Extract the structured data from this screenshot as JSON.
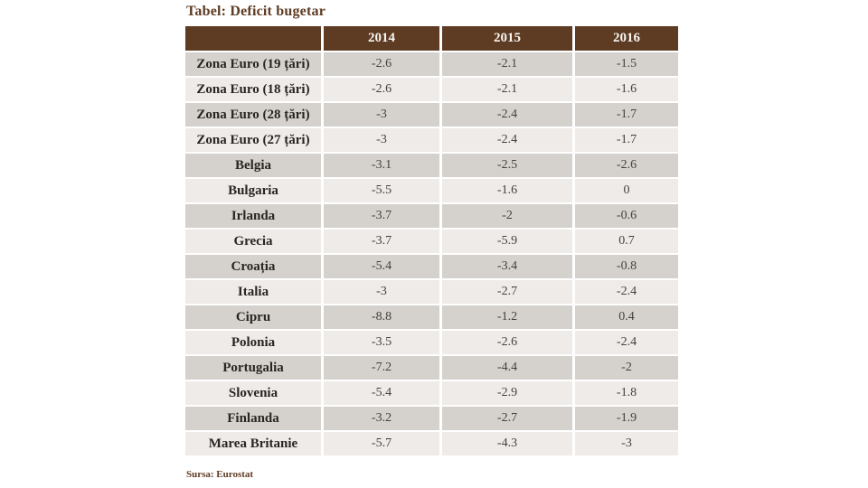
{
  "colors": {
    "page_background": "#FFFFFF",
    "header_bg": "#5E3B23",
    "header_text": "#F8F5F1",
    "row_dark_bg": "#D5D1CD",
    "row_light_bg": "#EEEBE9",
    "label_text": "#2A2522",
    "value_text": "#454140",
    "title_text": "#5E3B23"
  },
  "chart_data": {
    "type": "table",
    "title": "Tabel: Deficit bugetar",
    "source": "Sursa: Eurostat",
    "columns": [
      "",
      "2014",
      "2015",
      "2016"
    ],
    "rows": [
      {
        "label": "Zona Euro (19 țări)",
        "values": [
          "-2.6",
          "-2.1",
          "-1.5"
        ]
      },
      {
        "label": "Zona Euro (18 țări)",
        "values": [
          "-2.6",
          "-2.1",
          "-1.6"
        ]
      },
      {
        "label": "Zona Euro (28 țări)",
        "values": [
          "-3",
          "-2.4",
          "-1.7"
        ]
      },
      {
        "label": "Zona Euro (27 țări)",
        "values": [
          "-3",
          "-2.4",
          "-1.7"
        ]
      },
      {
        "label": "Belgia",
        "values": [
          "-3.1",
          "-2.5",
          "-2.6"
        ]
      },
      {
        "label": "Bulgaria",
        "values": [
          "-5.5",
          "-1.6",
          "0"
        ]
      },
      {
        "label": "Irlanda",
        "values": [
          "-3.7",
          "-2",
          "-0.6"
        ]
      },
      {
        "label": "Grecia",
        "values": [
          "-3.7",
          "-5.9",
          "0.7"
        ]
      },
      {
        "label": "Croația",
        "values": [
          "-5.4",
          "-3.4",
          "-0.8"
        ]
      },
      {
        "label": "Italia",
        "values": [
          "-3",
          "-2.7",
          "-2.4"
        ]
      },
      {
        "label": "Cipru",
        "values": [
          "-8.8",
          "-1.2",
          "0.4"
        ]
      },
      {
        "label": "Polonia",
        "values": [
          "-3.5",
          "-2.6",
          "-2.4"
        ]
      },
      {
        "label": "Portugalia",
        "values": [
          "-7.2",
          "-4.4",
          "-2"
        ]
      },
      {
        "label": "Slovenia",
        "values": [
          "-5.4",
          "-2.9",
          "-1.8"
        ]
      },
      {
        "label": "Finlanda",
        "values": [
          "-3.2",
          "-2.7",
          "-1.9"
        ]
      },
      {
        "label": "Marea Britanie",
        "values": [
          "-5.7",
          "-4.3",
          "-3"
        ]
      }
    ]
  }
}
